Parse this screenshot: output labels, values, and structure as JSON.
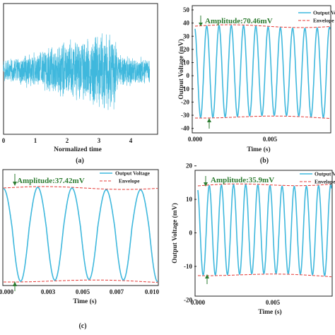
{
  "colors": {
    "signal": "#3fb8dd",
    "envelope": "#e53935",
    "annotation": "#2e7d32"
  },
  "chart_data": [
    {
      "id": "a",
      "type": "line",
      "panel_label": "(a)",
      "xlabel": "Normalized time",
      "ylabel": "",
      "x_ticks": [
        "0",
        "1",
        "2",
        "3",
        "4"
      ],
      "xlim": [
        0,
        4.85
      ],
      "note": "noise-like burst, amplitude grows from ~0.3 to ~1.0 then drops at ~3.55",
      "envelope_points": [
        [
          0,
          0.25
        ],
        [
          1.0,
          0.42
        ],
        [
          2.0,
          0.68
        ],
        [
          3.0,
          0.86
        ],
        [
          3.5,
          0.95
        ],
        [
          3.6,
          0.4
        ],
        [
          4.6,
          0.28
        ]
      ]
    },
    {
      "id": "b",
      "type": "line",
      "panel_label": "(b)",
      "xlabel": "Time (s)",
      "ylabel": "Output Voltage (mV)",
      "x_ticks": [
        "0.000",
        "0.005"
      ],
      "y_ticks": [
        "50",
        "40",
        "30",
        "20",
        "10",
        "0",
        "-10",
        "-20",
        "-30",
        "-40"
      ],
      "ylim": [
        -45,
        50
      ],
      "annotation": "Amplitude:70.46mV",
      "legend": [
        "Output Vo",
        "Envelope"
      ],
      "cycles": 11,
      "amplitude": 35
    },
    {
      "id": "c",
      "type": "line",
      "panel_label": "(c)",
      "xlabel": "Time (s)",
      "ylabel": "",
      "x_ticks": [
        "0.000",
        "0.003",
        "0.005",
        "0.007",
        "0.010"
      ],
      "annotation": "Amplitude:37.42mV",
      "legend": [
        "Output Voltage",
        "Envelope"
      ],
      "cycles": 4.5,
      "amplitude": 18.7
    },
    {
      "id": "d",
      "type": "line",
      "panel_label": "(d)",
      "xlabel": "Time (s)",
      "ylabel": "Output Voltage (mV)",
      "x_ticks": [
        "0.000",
        "0.005"
      ],
      "y_ticks": [
        "20",
        "10",
        "0",
        "-10",
        "-20"
      ],
      "ylim": [
        -25,
        25
      ],
      "annotation": "Amplitude:35.9mV",
      "legend": [
        "Output V",
        "Envelope"
      ],
      "cycles": 11,
      "amplitude": 17.9
    }
  ]
}
